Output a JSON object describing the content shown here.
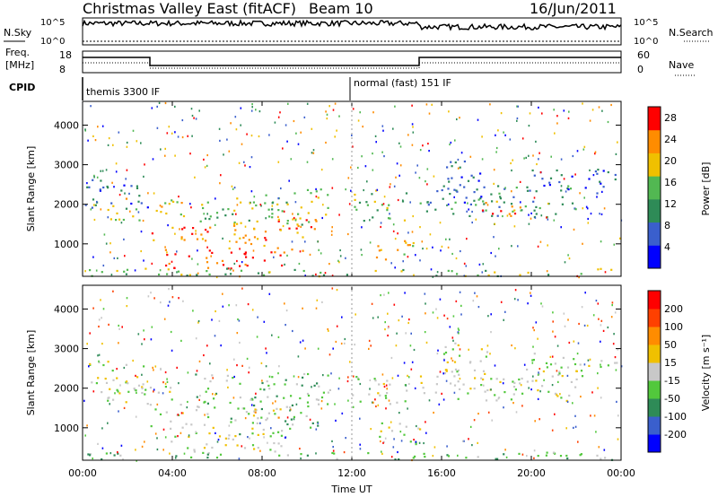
{
  "header": {
    "title": "Christmas Valley East (fitACF)",
    "beam": "Beam 10",
    "date": "16/Jun/2011"
  },
  "strips": {
    "nsky_label": "N.Sky",
    "nsky_ticks": [
      "10^5",
      "10^0"
    ],
    "nsearch_label": "N.Search",
    "nsearch_ticks": [
      "10^5",
      "10^0"
    ],
    "freq_label_1": "Freq.",
    "freq_label_2": "[MHz]",
    "freq_ticks": [
      "18",
      "8"
    ],
    "nave_label": "Nave",
    "nave_ticks": [
      "60",
      "0"
    ],
    "cpid_label": "CPID",
    "cpid_segments": [
      "themis 3300 IF",
      "normal (fast) 151 IF"
    ]
  },
  "chart_data": [
    {
      "type": "heatmap",
      "name": "power-panel",
      "ylabel": "Slant Range [km]",
      "xlabel": "Time UT",
      "x_ticks": [
        "00:00",
        "04:00",
        "08:00",
        "12:00",
        "16:00",
        "20:00",
        "00:00"
      ],
      "xlim_hours": [
        0,
        24
      ],
      "y_ticks": [
        1000,
        2000,
        3000,
        4000
      ],
      "ylim": [
        180,
        4600
      ],
      "colorbar_label": "Power [dB]",
      "colorbar_ticks": [
        4,
        8,
        12,
        16,
        20,
        24,
        28
      ],
      "colorbar_range": [
        0,
        30
      ],
      "colors": [
        "#0000ff",
        "#3a5fcd",
        "#2e8b57",
        "#52b852",
        "#f0c000",
        "#ff8c00",
        "#ff0000"
      ],
      "echo_regions": [
        {
          "t0": 0.1,
          "t1": 3.0,
          "r0": 1900,
          "r1": 2700,
          "level": 1
        },
        {
          "t0": 1.0,
          "t1": 4.5,
          "r0": 1600,
          "r1": 2200,
          "level": 4
        },
        {
          "t0": 3.0,
          "t1": 6.0,
          "r0": 1000,
          "r1": 1500,
          "level": 5
        },
        {
          "t0": 5.0,
          "t1": 11.0,
          "r0": 1500,
          "r1": 2400,
          "level": 3
        },
        {
          "t0": 6.5,
          "t1": 10.5,
          "r0": 800,
          "r1": 1700,
          "level": 5
        },
        {
          "t0": 3.5,
          "t1": 9.0,
          "r0": 400,
          "r1": 900,
          "level": 6
        },
        {
          "t0": 12.0,
          "t1": 14.5,
          "r0": 1600,
          "r1": 2400,
          "level": 3
        },
        {
          "t0": 13.0,
          "t1": 15.0,
          "r0": 600,
          "r1": 1200,
          "level": 4
        },
        {
          "t0": 15.0,
          "t1": 22.0,
          "r0": 1700,
          "r1": 2500,
          "level": 2
        },
        {
          "t0": 17.0,
          "t1": 19.5,
          "r0": 1700,
          "r1": 2100,
          "level": 5
        },
        {
          "t0": 16.0,
          "t1": 18.0,
          "r0": 2000,
          "r1": 3200,
          "level": 1
        },
        {
          "t0": 20.0,
          "t1": 24.0,
          "r0": 2300,
          "r1": 2900,
          "level": 1
        },
        {
          "t0": 0.0,
          "t1": 24.0,
          "r0": 200,
          "r1": 400,
          "level": 3
        }
      ]
    },
    {
      "type": "heatmap",
      "name": "velocity-panel",
      "ylabel": "Slant Range [km]",
      "xlabel": "Time UT",
      "x_ticks": [
        "00:00",
        "04:00",
        "08:00",
        "12:00",
        "16:00",
        "20:00",
        "00:00"
      ],
      "xlim_hours": [
        0,
        24
      ],
      "y_ticks": [
        1000,
        2000,
        3000,
        4000
      ],
      "ylim": [
        180,
        4600
      ],
      "colorbar_label": "Velocity [m s⁻¹]",
      "colorbar_ticks": [
        200,
        100,
        50,
        15,
        -15,
        -50,
        -100,
        -200
      ],
      "colors": [
        "#0000ff",
        "#3a5fcd",
        "#2e8b57",
        "#52c83c",
        "#c8c8c8",
        "#f0c000",
        "#ff8c00",
        "#ff4000",
        "#ff0000"
      ],
      "echo_regions": [
        {
          "t0": 0.1,
          "t1": 3.0,
          "r0": 1900,
          "r1": 2700,
          "level": 4
        },
        {
          "t0": 1.0,
          "t1": 4.5,
          "r0": 1600,
          "r1": 2200,
          "level": 4
        },
        {
          "t0": 3.0,
          "t1": 6.0,
          "r0": 1000,
          "r1": 1500,
          "level": 4
        },
        {
          "t0": 5.0,
          "t1": 11.0,
          "r0": 1500,
          "r1": 2400,
          "level": 3
        },
        {
          "t0": 6.5,
          "t1": 10.5,
          "r0": 800,
          "r1": 1700,
          "level": 3
        },
        {
          "t0": 7.5,
          "t1": 9.0,
          "r0": 800,
          "r1": 1500,
          "level": 5
        },
        {
          "t0": 3.5,
          "t1": 9.0,
          "r0": 400,
          "r1": 900,
          "level": 4
        },
        {
          "t0": 12.0,
          "t1": 14.5,
          "r0": 1600,
          "r1": 2400,
          "level": 4
        },
        {
          "t0": 13.0,
          "t1": 15.0,
          "r0": 600,
          "r1": 1200,
          "level": 4
        },
        {
          "t0": 15.0,
          "t1": 22.0,
          "r0": 1700,
          "r1": 2500,
          "level": 4
        },
        {
          "t0": 16.0,
          "t1": 18.0,
          "r0": 2000,
          "r1": 3200,
          "level": 4
        },
        {
          "t0": 20.0,
          "t1": 24.0,
          "r0": 2300,
          "r1": 2900,
          "level": 4
        },
        {
          "t0": 0.0,
          "t1": 24.0,
          "r0": 200,
          "r1": 400,
          "level": 3
        }
      ]
    }
  ]
}
